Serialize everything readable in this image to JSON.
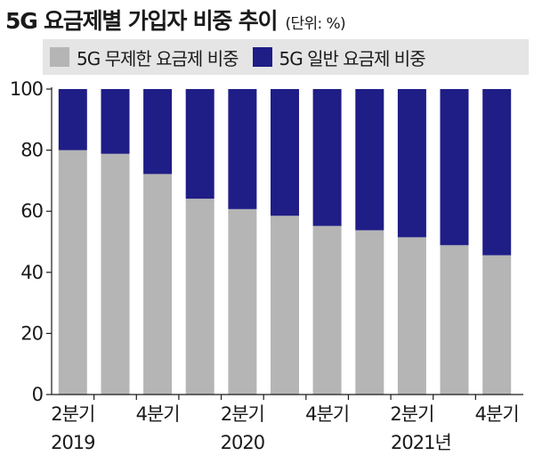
{
  "header": {
    "title": "5G 요금제별 가입자 비중 추이",
    "unit": "(단위: %)"
  },
  "chart_data": {
    "type": "bar",
    "stacked": true,
    "categories": [
      "2분기",
      "",
      "4분기",
      "",
      "2분기",
      "",
      "4분기",
      "",
      "2분기",
      "",
      "4분기"
    ],
    "year_labels": [
      "2019",
      "2020",
      "2021년"
    ],
    "series": [
      {
        "name": "5G 무제한 요금제 비중",
        "color": "#b5b5b5",
        "values": [
          80,
          78.8,
          72.2,
          64.1,
          60.7,
          58.5,
          55.2,
          53.8,
          51.5,
          48.9,
          45.6
        ]
      },
      {
        "name": "5G 일반 요금제 비중",
        "color": "#1f1d86",
        "values": [
          20,
          21.2,
          27.8,
          35.9,
          39.3,
          41.5,
          44.8,
          46.2,
          48.5,
          51.1,
          54.4
        ]
      }
    ],
    "yticks": [
      0,
      20,
      40,
      60,
      80,
      100
    ],
    "ylim": [
      0,
      100
    ],
    "grid": false,
    "legend": "top"
  }
}
